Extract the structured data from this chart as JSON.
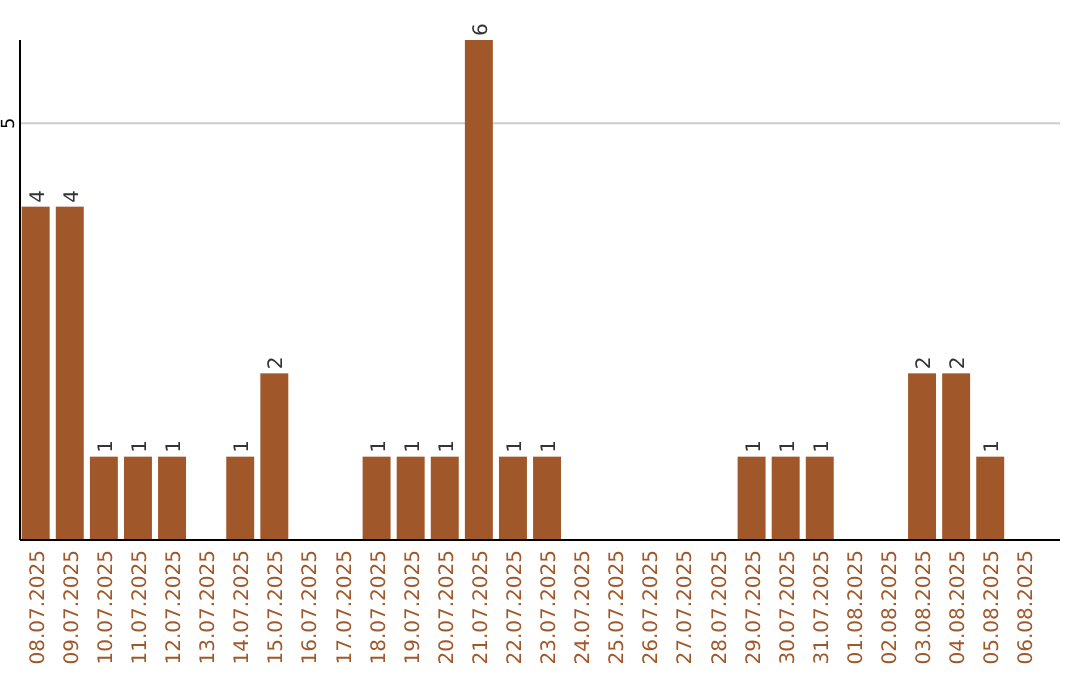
{
  "chart_data": {
    "type": "bar",
    "categories": [
      "08.07.2025",
      "09.07.2025",
      "10.07.2025",
      "11.07.2025",
      "12.07.2025",
      "13.07.2025",
      "14.07.2025",
      "15.07.2025",
      "16.07.2025",
      "17.07.2025",
      "18.07.2025",
      "19.07.2025",
      "20.07.2025",
      "21.07.2025",
      "22.07.2025",
      "23.07.2025",
      "24.07.2025",
      "25.07.2025",
      "26.07.2025",
      "27.07.2025",
      "28.07.2025",
      "29.07.2025",
      "30.07.2025",
      "31.07.2025",
      "01.08.2025",
      "02.08.2025",
      "03.08.2025",
      "04.08.2025",
      "05.08.2025",
      "06.08.2025"
    ],
    "values": [
      4,
      4,
      1,
      1,
      1,
      0,
      1,
      2,
      0,
      0,
      1,
      1,
      1,
      6,
      1,
      1,
      0,
      0,
      0,
      0,
      0,
      1,
      1,
      1,
      0,
      0,
      2,
      2,
      1,
      0
    ],
    "value_labels": [
      "4",
      "4",
      "1",
      "1",
      "1",
      null,
      "1",
      "2",
      null,
      null,
      "1",
      "1",
      "1",
      "6",
      "1",
      "1",
      null,
      null,
      null,
      null,
      null,
      "1",
      "1",
      "1",
      null,
      null,
      "2",
      "2",
      "1",
      null
    ],
    "color": "#a0582a",
    "ylim": [
      0,
      6
    ],
    "yticks": [
      5
    ],
    "grid": "y"
  }
}
